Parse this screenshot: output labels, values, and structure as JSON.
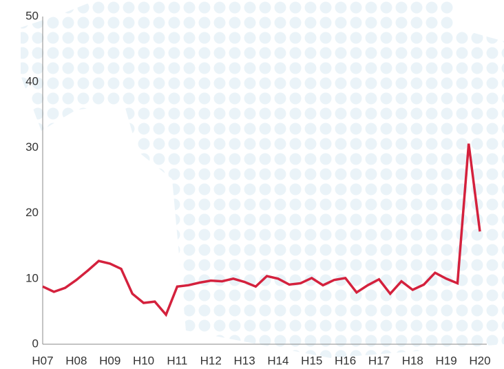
{
  "chart_data": {
    "type": "line",
    "categories": [
      "H07",
      null,
      null,
      "H08",
      null,
      null,
      "H09",
      null,
      null,
      "H10",
      null,
      null,
      "H11",
      null,
      null,
      "H12",
      null,
      null,
      "H13",
      null,
      null,
      "H14",
      null,
      null,
      "H15",
      null,
      null,
      "H16",
      null,
      null,
      "H17",
      null,
      null,
      "H18",
      null,
      null,
      "H19",
      null,
      null,
      "H20"
    ],
    "series": [
      {
        "name": null,
        "color": "#d4213d",
        "values": [
          8.8,
          8.0,
          8.6,
          9.8,
          11.2,
          12.7,
          12.3,
          11.5,
          7.7,
          6.3,
          6.5,
          4.5,
          8.8,
          9.0,
          9.4,
          9.7,
          9.6,
          10.0,
          9.5,
          8.8,
          10.4,
          10.0,
          9.1,
          9.3,
          10.1,
          9.0,
          9.8,
          10.1,
          7.9,
          9.0,
          9.9,
          7.7,
          9.6,
          8.3,
          9.1,
          10.9,
          10.0,
          9.3,
          30.6,
          17.2
        ]
      }
    ],
    "ylim": [
      0,
      50
    ],
    "yticks": [
      0,
      10,
      20,
      30,
      40,
      50
    ],
    "grid": false
  }
}
